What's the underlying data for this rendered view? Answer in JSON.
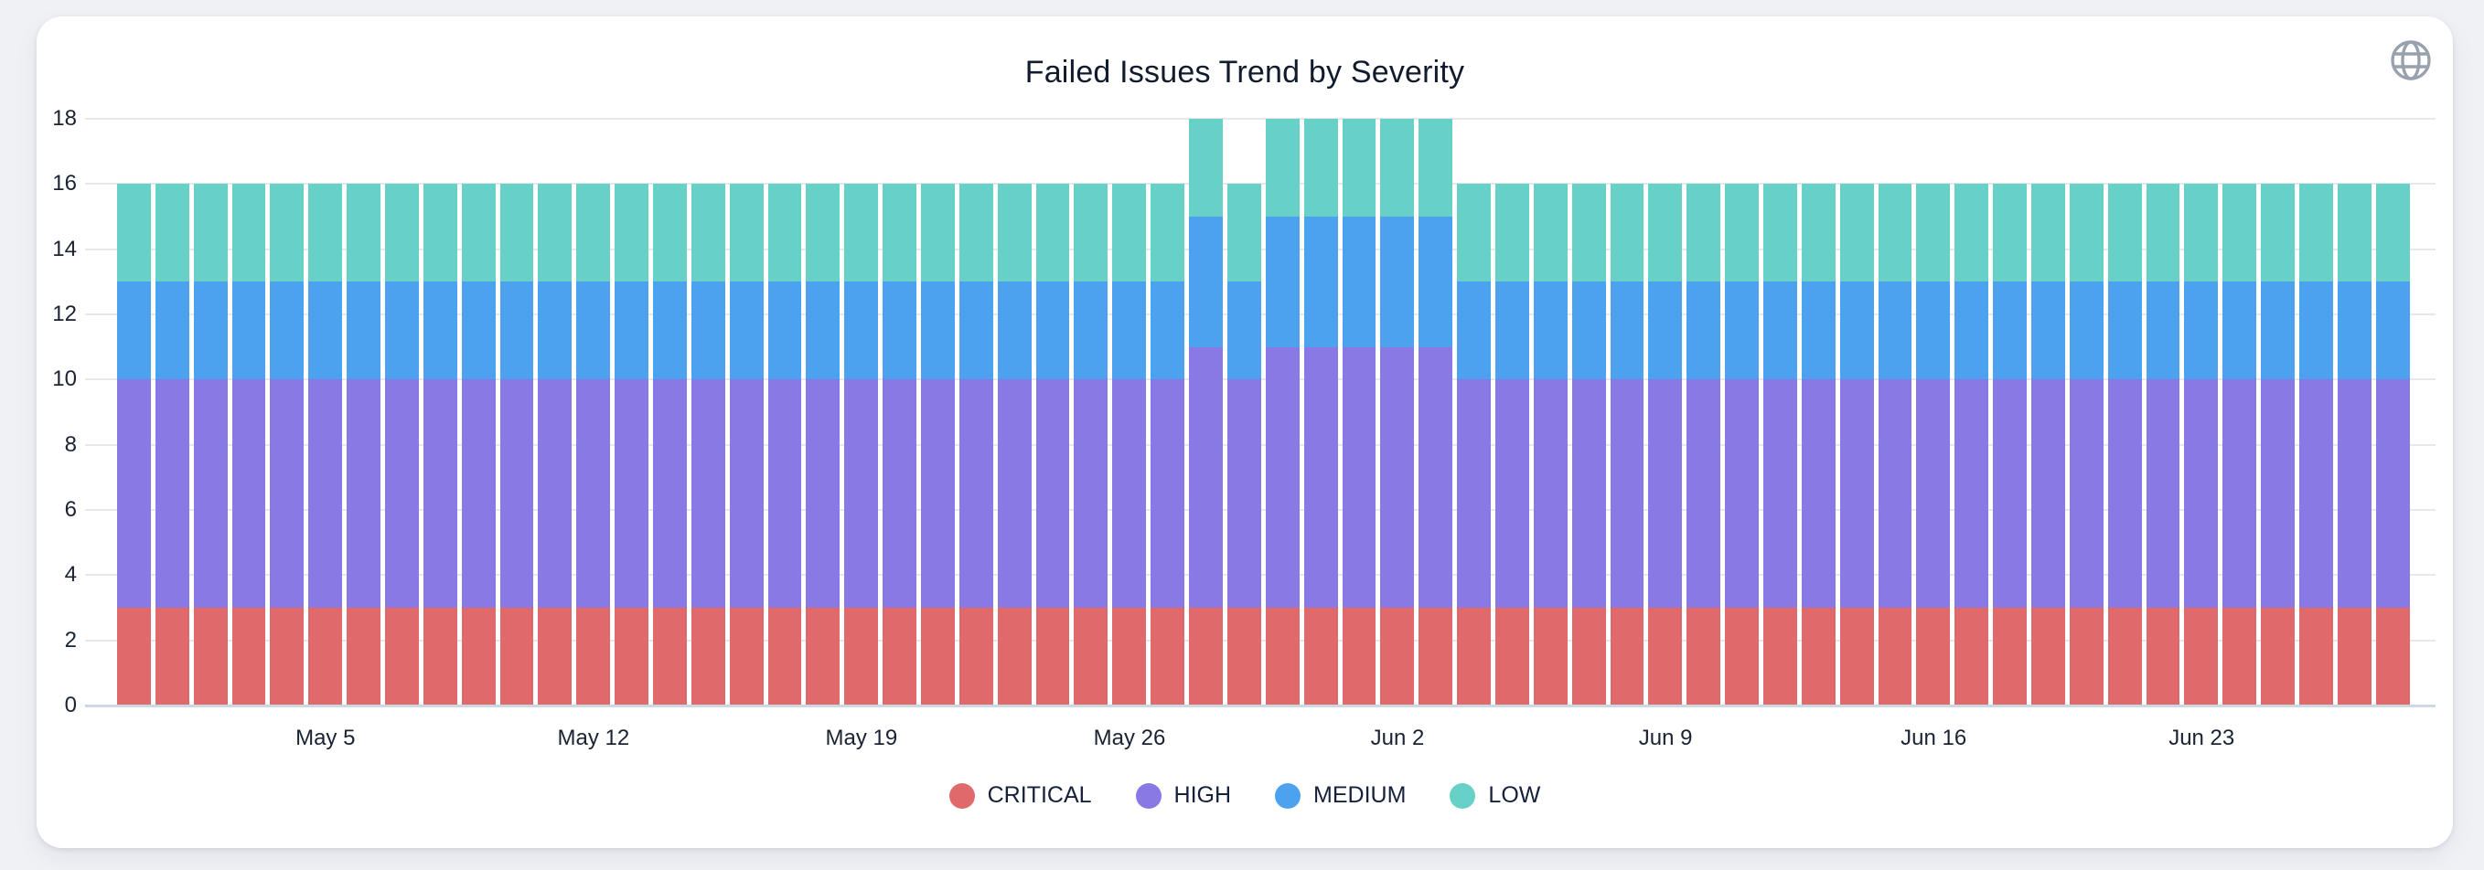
{
  "page": {
    "background_color": "#eff1f5",
    "card_color": "#ffffff"
  },
  "header": {
    "icon": {
      "name": "globe-icon",
      "color": "#99a1ae"
    }
  },
  "colors": {
    "text": "#1a2334",
    "title_text": "#111b2e",
    "gridline": "#e7e8ec",
    "axis_line": "#ccd8e3"
  },
  "chart_data": {
    "type": "bar",
    "stacked": true,
    "title": "Failed Issues Trend by Severity",
    "xlabel": "",
    "ylabel": "",
    "ylim": [
      0,
      18
    ],
    "yticks": [
      0,
      2,
      4,
      6,
      8,
      10,
      12,
      14,
      16,
      18
    ],
    "grid": true,
    "legend_position": "bottom",
    "x": [
      "Apr 30",
      "May 1",
      "May 2",
      "May 3",
      "May 4",
      "May 5",
      "May 6",
      "May 7",
      "May 8",
      "May 9",
      "May 10",
      "May 11",
      "May 12",
      "May 13",
      "May 14",
      "May 15",
      "May 16",
      "May 17",
      "May 18",
      "May 19",
      "May 20",
      "May 21",
      "May 22",
      "May 23",
      "May 24",
      "May 25",
      "May 26",
      "May 27",
      "May 28",
      "May 29",
      "May 30",
      "May 31",
      "Jun 1",
      "Jun 2",
      "Jun 3",
      "Jun 4",
      "Jun 5",
      "Jun 6",
      "Jun 7",
      "Jun 8",
      "Jun 9",
      "Jun 10",
      "Jun 11",
      "Jun 12",
      "Jun 13",
      "Jun 14",
      "Jun 15",
      "Jun 16",
      "Jun 17",
      "Jun 18",
      "Jun 19",
      "Jun 20",
      "Jun 21",
      "Jun 22",
      "Jun 23",
      "Jun 24",
      "Jun 25",
      "Jun 26",
      "Jun 27",
      "Jun 28"
    ],
    "x_tick_labels": [
      "May 5",
      "May 12",
      "May 19",
      "May 26",
      "Jun 2",
      "Jun 9",
      "Jun 16",
      "Jun 23"
    ],
    "x_tick_indices": [
      5,
      12,
      19,
      26,
      33,
      40,
      47,
      54
    ],
    "series": [
      {
        "name": "CRITICAL",
        "color": "#e06a6b",
        "values": [
          3,
          3,
          3,
          3,
          3,
          3,
          3,
          3,
          3,
          3,
          3,
          3,
          3,
          3,
          3,
          3,
          3,
          3,
          3,
          3,
          3,
          3,
          3,
          3,
          3,
          3,
          3,
          3,
          3,
          3,
          3,
          3,
          3,
          3,
          3,
          3,
          3,
          3,
          3,
          3,
          3,
          3,
          3,
          3,
          3,
          3,
          3,
          3,
          3,
          3,
          3,
          3,
          3,
          3,
          3,
          3,
          3,
          3,
          3,
          3
        ]
      },
      {
        "name": "HIGH",
        "color": "#8979e5",
        "values": [
          7,
          7,
          7,
          7,
          7,
          7,
          7,
          7,
          7,
          7,
          7,
          7,
          7,
          7,
          7,
          7,
          7,
          7,
          7,
          7,
          7,
          7,
          7,
          7,
          7,
          7,
          7,
          7,
          8,
          7,
          8,
          8,
          8,
          8,
          8,
          7,
          7,
          7,
          7,
          7,
          7,
          7,
          7,
          7,
          7,
          7,
          7,
          7,
          7,
          7,
          7,
          7,
          7,
          7,
          7,
          7,
          7,
          7,
          7,
          7
        ]
      },
      {
        "name": "MEDIUM",
        "color": "#4da2ef",
        "values": [
          3,
          3,
          3,
          3,
          3,
          3,
          3,
          3,
          3,
          3,
          3,
          3,
          3,
          3,
          3,
          3,
          3,
          3,
          3,
          3,
          3,
          3,
          3,
          3,
          3,
          3,
          3,
          3,
          4,
          3,
          4,
          4,
          4,
          4,
          4,
          3,
          3,
          3,
          3,
          3,
          3,
          3,
          3,
          3,
          3,
          3,
          3,
          3,
          3,
          3,
          3,
          3,
          3,
          3,
          3,
          3,
          3,
          3,
          3,
          3
        ]
      },
      {
        "name": "LOW",
        "color": "#67d1c8",
        "values": [
          3,
          3,
          3,
          3,
          3,
          3,
          3,
          3,
          3,
          3,
          3,
          3,
          3,
          3,
          3,
          3,
          3,
          3,
          3,
          3,
          3,
          3,
          3,
          3,
          3,
          3,
          3,
          3,
          3,
          3,
          3,
          3,
          3,
          3,
          3,
          3,
          3,
          3,
          3,
          3,
          3,
          3,
          3,
          3,
          3,
          3,
          3,
          3,
          3,
          3,
          3,
          3,
          3,
          3,
          3,
          3,
          3,
          3,
          3,
          3
        ]
      }
    ]
  }
}
